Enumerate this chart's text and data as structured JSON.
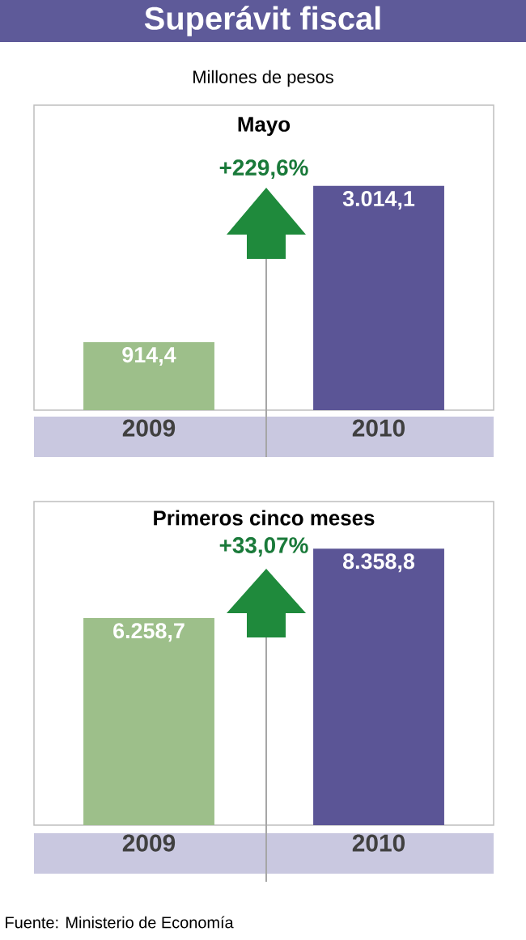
{
  "chart_data": [
    {
      "type": "bar",
      "title": "Superávit fiscal",
      "subtitle": "Millones de pesos",
      "annotations": [
        "Mayo",
        "+229,6%"
      ],
      "categories": [
        "2009",
        "2010"
      ],
      "values": [
        914.4,
        3014.1
      ],
      "colors": [
        "#9dbf8a",
        "#5b5596"
      ],
      "value_labels": [
        "914,4",
        "3.014,1"
      ]
    },
    {
      "type": "bar",
      "title": "Primeros cinco meses",
      "annotations": [
        "+33,07%",
        "Fuente: Ministerio de Economía"
      ],
      "categories": [
        "2009",
        "2010"
      ],
      "values": [
        6258.7,
        8358.8
      ],
      "colors": [
        "#9dbf8a",
        "#5b5596"
      ],
      "value_labels": [
        "6.258,7",
        "8.358,8"
      ]
    }
  ]
}
